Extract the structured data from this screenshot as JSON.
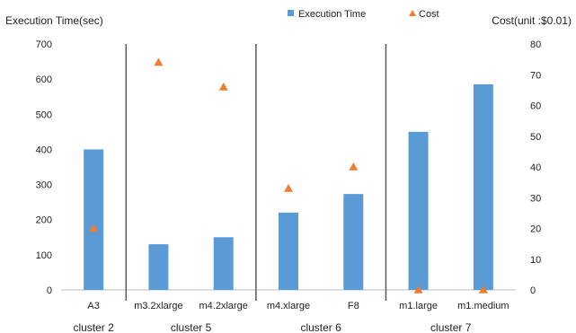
{
  "chart_data": {
    "type": "bar",
    "title": "",
    "y_left_label": "Execution Time(sec)",
    "y_right_label": "Cost(unit :$0.01)",
    "y_left_range": [
      0,
      700
    ],
    "y_left_ticks": [
      "0",
      "100",
      "200",
      "300",
      "400",
      "500",
      "600",
      "700"
    ],
    "y_right_range": [
      0,
      80
    ],
    "y_right_ticks": [
      "0",
      "10",
      "20",
      "30",
      "40",
      "50",
      "60",
      "70",
      "80"
    ],
    "categories": [
      "A3",
      "m3.2xlarge",
      "m4.2xlarge",
      "m4.xlarge",
      "F8",
      "m1.large",
      "m1.medium"
    ],
    "series": [
      {
        "name": "Execution Time",
        "type": "bar",
        "axis": "left",
        "color": "#5b9bd5",
        "values": [
          400,
          130,
          150,
          220,
          273,
          450,
          585
        ]
      },
      {
        "name": "Cost",
        "type": "scatter",
        "marker": "triangle",
        "axis": "right",
        "color": "#ed7d31",
        "values": [
          20,
          74,
          66,
          33,
          40,
          0,
          0
        ]
      }
    ],
    "groups": [
      {
        "label": "cluster 2",
        "start": 0,
        "end": 0
      },
      {
        "label": "cluster 5",
        "start": 1,
        "end": 2
      },
      {
        "label": "cluster 6",
        "start": 3,
        "end": 4
      },
      {
        "label": "cluster 7",
        "start": 5,
        "end": 6
      }
    ],
    "legend_position": "top",
    "grid": false
  }
}
